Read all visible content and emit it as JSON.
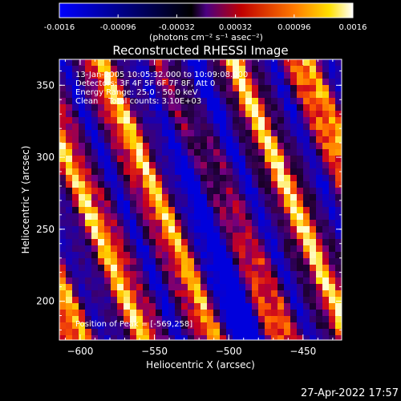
{
  "colorbar": {
    "min": -0.0016,
    "max": 0.0016,
    "tick_labels": [
      "-0.0016",
      "-0.00096",
      "-0.00032",
      "0.00032",
      "0.00096",
      "0.0016"
    ],
    "unit_label": "(photons cm⁻² s⁻¹ asec⁻²)",
    "colormap": [
      "#0000ff",
      "#000000",
      "#ff0000",
      "#ffff00",
      "#ffffff"
    ]
  },
  "chart_data": {
    "type": "heatmap",
    "title": "Reconstructed RHESSI Image",
    "xlabel": "Heliocentric X (arcsec)",
    "ylabel": "Heliocentric Y (arcsec)",
    "xlim": [
      -614,
      -424
    ],
    "ylim": [
      173,
      368
    ],
    "x_ticks": [
      -600,
      -550,
      -500,
      -450
    ],
    "y_ticks": [
      200,
      250,
      300,
      350
    ],
    "pattern": "diagonal stripes (back-projection artifacts)",
    "peak": [
      -569,
      258
    ]
  },
  "annotations": {
    "line1": "13-Jan-2005 10:05:32.000 to 10:09:08.000",
    "line2": "Detectors: 3F 4F 5F 6F 7F 8F, Att 0",
    "line3": "Energy Range: 25.0 - 50.0 keV",
    "line4": "Clean    Total counts: 3.10E+03",
    "peak_text": "Position of Peak = [-569,258]"
  },
  "footer": {
    "timestamp": "27-Apr-2022 17:57"
  }
}
